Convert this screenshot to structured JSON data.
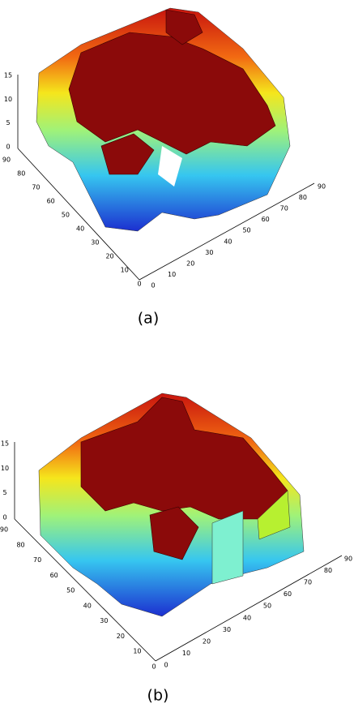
{
  "panels": [
    {
      "caption": "(a)",
      "z_ticks": [
        0,
        5,
        10,
        15
      ],
      "left_ticks": [
        90,
        80,
        70,
        60,
        50,
        40,
        30,
        20,
        10,
        0
      ],
      "right_ticks": [
        0,
        10,
        20,
        30,
        40,
        50,
        60,
        70,
        80,
        90
      ]
    },
    {
      "caption": "(b)",
      "z_ticks": [
        0,
        5,
        10,
        15
      ],
      "left_ticks": [
        90,
        80,
        70,
        60,
        50,
        40,
        30,
        20,
        10,
        0
      ],
      "right_ticks": [
        0,
        10,
        20,
        30,
        40,
        50,
        60,
        70,
        80,
        90
      ]
    }
  ]
}
